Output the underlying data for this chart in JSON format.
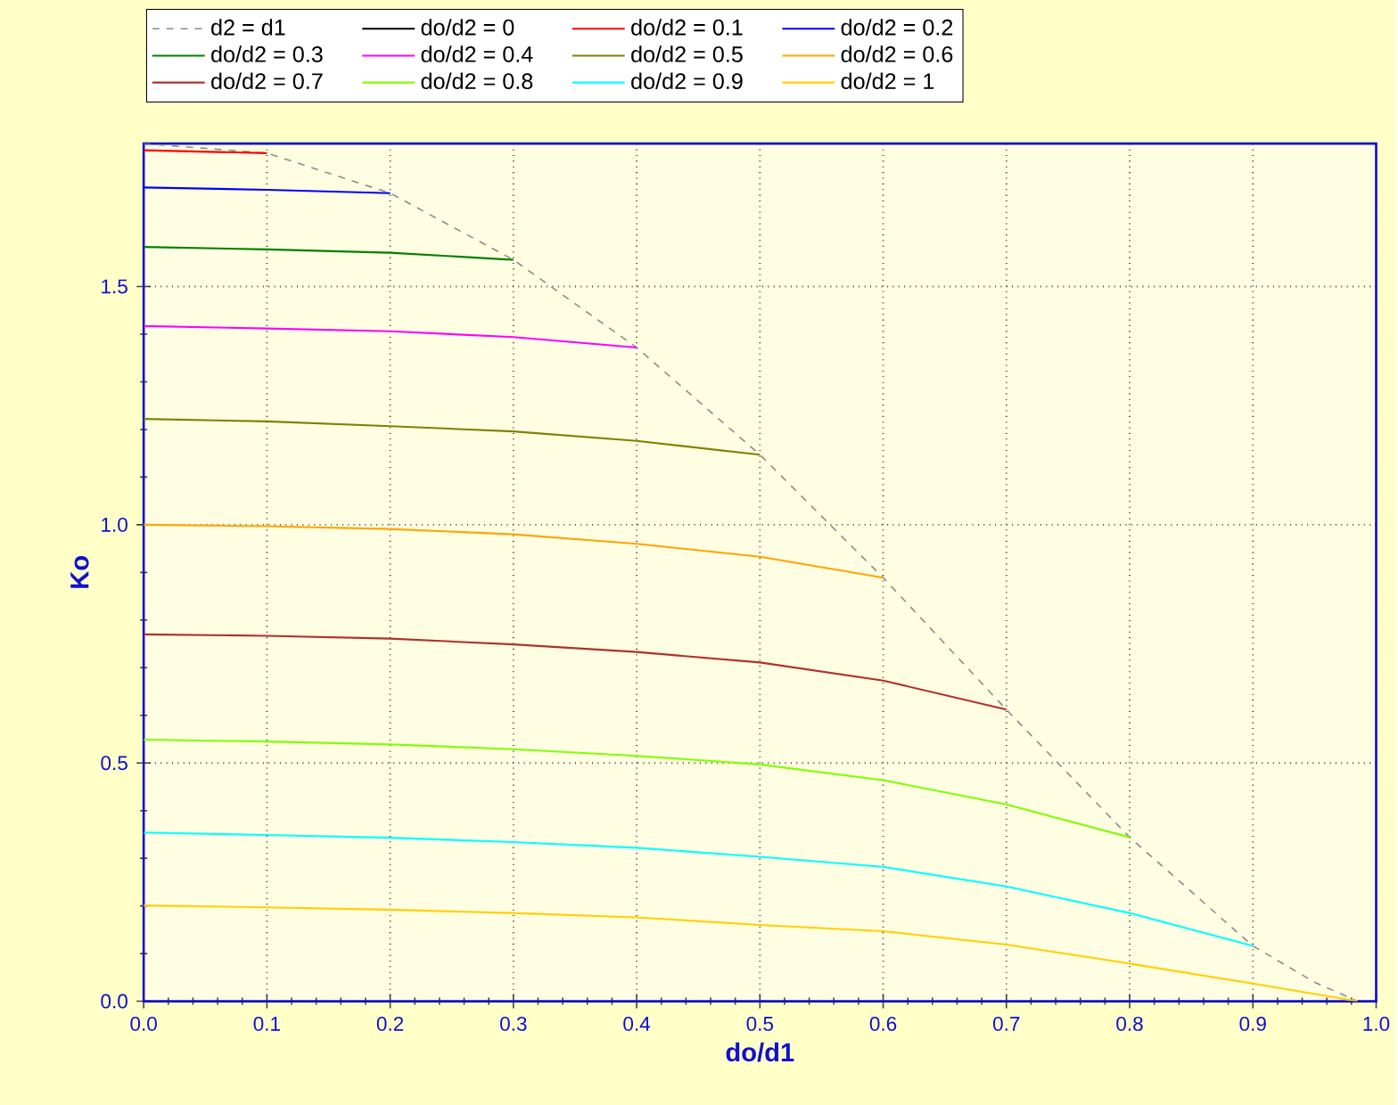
{
  "chart_data": {
    "type": "line",
    "xlabel": "do/d1",
    "ylabel": "Ko",
    "xlim": [
      0,
      1
    ],
    "ylim": [
      0,
      1.8
    ],
    "xticks": [
      {
        "value": 0,
        "label": "0.0"
      },
      0.1,
      0.2,
      0.3,
      0.4,
      0.5,
      0.6,
      0.7,
      0.8,
      0.9,
      {
        "value": 1,
        "label": "1.0"
      }
    ],
    "yticks": [
      {
        "value": 0,
        "label": "0.0"
      },
      0.5,
      {
        "value": 1,
        "label": "1.0"
      },
      1.5
    ],
    "grid": true,
    "legend": "top",
    "series": [
      {
        "name": "d2 = d1",
        "color": "#8c8c8c",
        "line_style": "dashed",
        "x": [
          0,
          0.1,
          0.2,
          0.3,
          0.4,
          0.5,
          0.6,
          0.7,
          0.8,
          0.9,
          0.95,
          0.985
        ],
        "values": [
          1.8,
          1.78,
          1.696,
          1.556,
          1.372,
          1.147,
          0.889,
          0.612,
          0.344,
          0.116,
          0.04,
          0
        ]
      },
      {
        "name": "do/d2 = 0",
        "color": "#000000"
      },
      {
        "name": "do/d2 = 0.1",
        "color": "#ff0000",
        "x": [
          0,
          0.1
        ],
        "values": [
          1.786,
          1.78
        ]
      },
      {
        "name": "do/d2 = 0.2",
        "color": "#0000ff",
        "x": [
          0,
          0.1,
          0.2
        ],
        "values": [
          1.708,
          1.703,
          1.696
        ]
      },
      {
        "name": "do/d2 = 0.3",
        "color": "#008000",
        "x": [
          0,
          0.1,
          0.2,
          0.3
        ],
        "values": [
          1.583,
          1.578,
          1.571,
          1.556
        ]
      },
      {
        "name": "do/d2 = 0.4",
        "color": "#ff00ff",
        "x": [
          0,
          0.1,
          0.2,
          0.3,
          0.4
        ],
        "values": [
          1.417,
          1.412,
          1.406,
          1.394,
          1.372
        ]
      },
      {
        "name": "do/d2 = 0.5",
        "color": "#808000",
        "x": [
          0,
          0.1,
          0.2,
          0.3,
          0.4,
          0.5
        ],
        "values": [
          1.222,
          1.217,
          1.207,
          1.196,
          1.176,
          1.147
        ]
      },
      {
        "name": "do/d2 = 0.6",
        "color": "#ffa500",
        "x": [
          0,
          0.1,
          0.2,
          0.3,
          0.4,
          0.5,
          0.6
        ],
        "values": [
          1.0,
          0.997,
          0.991,
          0.98,
          0.96,
          0.933,
          0.889
        ]
      },
      {
        "name": "do/d2 = 0.7",
        "color": "#b03030",
        "x": [
          0,
          0.1,
          0.2,
          0.3,
          0.4,
          0.5,
          0.6,
          0.7
        ],
        "values": [
          0.77,
          0.767,
          0.761,
          0.749,
          0.733,
          0.711,
          0.673,
          0.612
        ]
      },
      {
        "name": "do/d2 = 0.8",
        "color": "#80ff00",
        "x": [
          0,
          0.1,
          0.2,
          0.3,
          0.4,
          0.5,
          0.6,
          0.7,
          0.8
        ],
        "values": [
          0.549,
          0.545,
          0.539,
          0.529,
          0.515,
          0.497,
          0.464,
          0.413,
          0.344
        ]
      },
      {
        "name": "do/d2 = 0.9",
        "color": "#00ffff",
        "x": [
          0,
          0.1,
          0.2,
          0.3,
          0.4,
          0.5,
          0.6,
          0.7,
          0.8,
          0.9
        ],
        "values": [
          0.354,
          0.349,
          0.343,
          0.334,
          0.322,
          0.303,
          0.282,
          0.241,
          0.185,
          0.116
        ]
      },
      {
        "name": "do/d2 = 1",
        "color": "#ffd000",
        "x": [
          0,
          0.1,
          0.2,
          0.3,
          0.4,
          0.5,
          0.6,
          0.7,
          0.8,
          0.9,
          0.985
        ],
        "values": [
          0.201,
          0.197,
          0.192,
          0.185,
          0.176,
          0.16,
          0.147,
          0.119,
          0.079,
          0.037,
          0
        ]
      }
    ]
  }
}
